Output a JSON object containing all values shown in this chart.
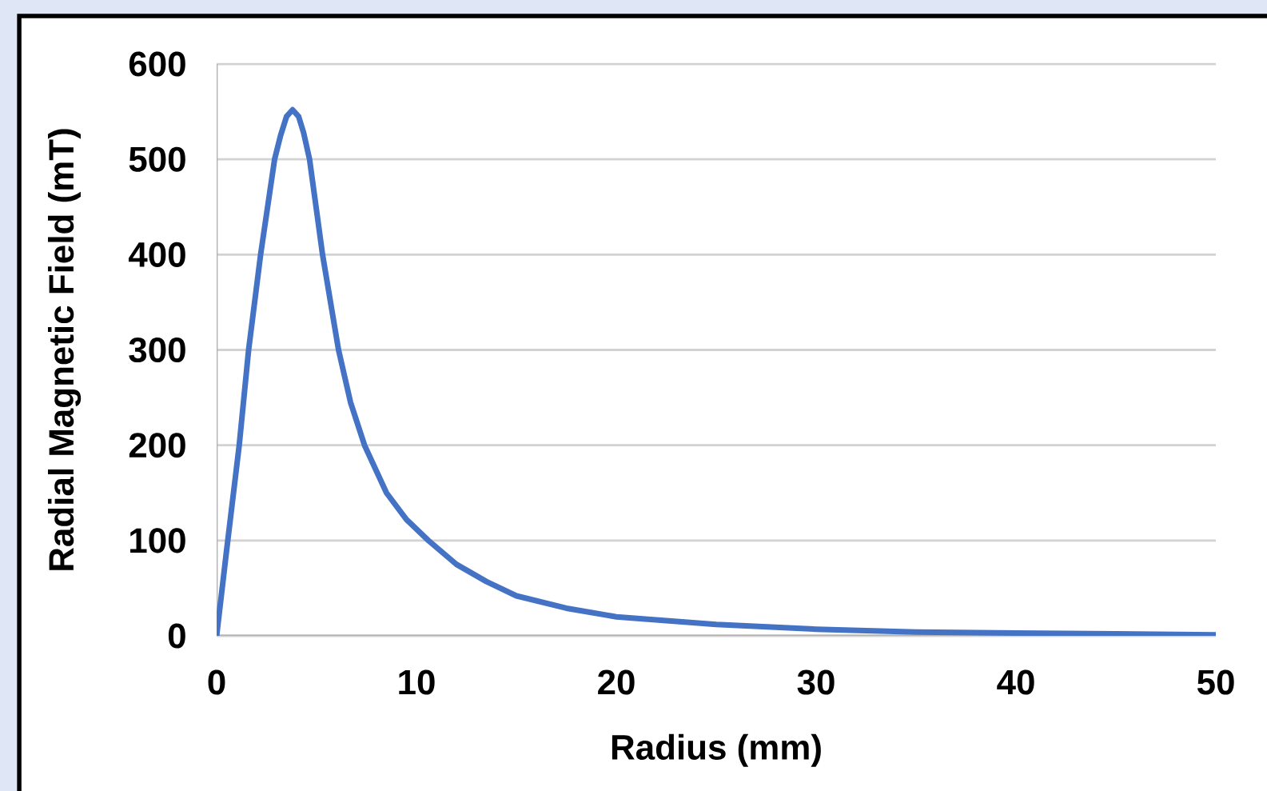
{
  "chart_data": {
    "type": "line",
    "xlabel": "Radius (mm)",
    "ylabel": "Radial Magnetic Field (mT)",
    "x": [
      0,
      0.5,
      1.13,
      1.6,
      2.2,
      2.9,
      3.2,
      3.5,
      3.8,
      4.1,
      4.35,
      4.65,
      5.3,
      6.1,
      6.7,
      7.4,
      8.5,
      9.5,
      10.6,
      12,
      13.5,
      15,
      17.5,
      20,
      22.5,
      25,
      30,
      35,
      40,
      45,
      50
    ],
    "values": [
      0,
      90,
      200,
      300,
      400,
      500,
      525,
      545,
      552,
      545,
      528,
      500,
      400,
      300,
      245,
      200,
      150,
      122,
      100,
      75,
      57,
      42,
      29,
      20,
      16,
      12,
      7,
      4,
      3,
      2,
      1
    ],
    "color": "#4472c4",
    "xlim": [
      0,
      50
    ],
    "ylim": [
      0,
      600
    ],
    "xticks": [
      0,
      10,
      20,
      30,
      40,
      50
    ],
    "yticks": [
      0,
      100,
      200,
      300,
      400,
      500,
      600
    ],
    "grid": "y"
  }
}
